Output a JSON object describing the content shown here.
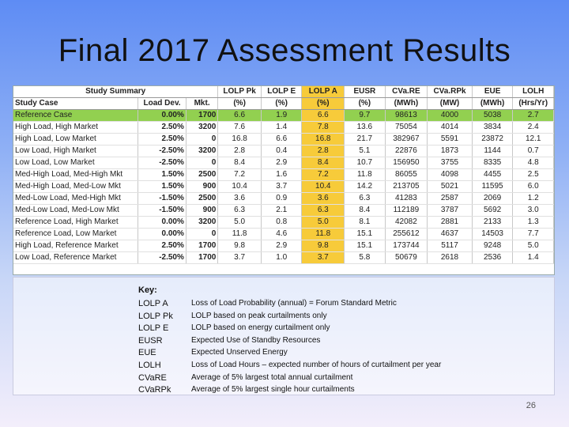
{
  "slide": {
    "title": "Final 2017 Assessment Results",
    "page_number": "26"
  },
  "table": {
    "header_top": {
      "study_summary": "Study Summary"
    },
    "columns": {
      "case": "Study Case",
      "dev": "Load Dev.",
      "mkt": "Mkt.",
      "lolp_pk": "LOLP Pk",
      "lolp_e": "LOLP E",
      "lolp_a": "LOLP A",
      "eusr": "EUSR",
      "cvare": "CVa.RE",
      "cvarpk": "CVa.RPk",
      "eue": "EUE",
      "lolh": "LOLH"
    },
    "units": {
      "lolp_pk": "(%)",
      "lolp_e": "(%)",
      "lolp_a": "(%)",
      "eusr": "(%)",
      "cvare": "(MWh)",
      "cvarpk": "(MW)",
      "eue": "(MWh)",
      "lolh": "(Hrs/Yr)"
    },
    "rows": [
      {
        "case": "Reference Case",
        "dev": "0.00%",
        "mkt": "1700",
        "lolp_pk": "6.6",
        "lolp_e": "1.9",
        "lolp_a": "6.6",
        "eusr": "9.7",
        "cvare": "98613",
        "cvarpk": "4000",
        "eue": "5038",
        "lolh": "2.7"
      },
      {
        "case": "High Load, High Market",
        "dev": "2.50%",
        "mkt": "3200",
        "lolp_pk": "7.6",
        "lolp_e": "1.4",
        "lolp_a": "7.8",
        "eusr": "13.6",
        "cvare": "75054",
        "cvarpk": "4014",
        "eue": "3834",
        "lolh": "2.4"
      },
      {
        "case": "High Load, Low Market",
        "dev": "2.50%",
        "mkt": "0",
        "lolp_pk": "16.8",
        "lolp_e": "6.6",
        "lolp_a": "16.8",
        "eusr": "21.7",
        "cvare": "382967",
        "cvarpk": "5591",
        "eue": "23872",
        "lolh": "12.1"
      },
      {
        "case": "Low Load, High Market",
        "dev": "-2.50%",
        "mkt": "3200",
        "lolp_pk": "2.8",
        "lolp_e": "0.4",
        "lolp_a": "2.8",
        "eusr": "5.1",
        "cvare": "22876",
        "cvarpk": "1873",
        "eue": "1144",
        "lolh": "0.7"
      },
      {
        "case": "Low Load, Low Market",
        "dev": "-2.50%",
        "mkt": "0",
        "lolp_pk": "8.4",
        "lolp_e": "2.9",
        "lolp_a": "8.4",
        "eusr": "10.7",
        "cvare": "156950",
        "cvarpk": "3755",
        "eue": "8335",
        "lolh": "4.8"
      },
      {
        "case": "Med-High Load, Med-High Mkt",
        "dev": "1.50%",
        "mkt": "2500",
        "lolp_pk": "7.2",
        "lolp_e": "1.6",
        "lolp_a": "7.2",
        "eusr": "11.8",
        "cvare": "86055",
        "cvarpk": "4098",
        "eue": "4455",
        "lolh": "2.5"
      },
      {
        "case": "Med-High Load, Med-Low Mkt",
        "dev": "1.50%",
        "mkt": "900",
        "lolp_pk": "10.4",
        "lolp_e": "3.7",
        "lolp_a": "10.4",
        "eusr": "14.2",
        "cvare": "213705",
        "cvarpk": "5021",
        "eue": "11595",
        "lolh": "6.0"
      },
      {
        "case": "Med-Low Load, Med-High Mkt",
        "dev": "-1.50%",
        "mkt": "2500",
        "lolp_pk": "3.6",
        "lolp_e": "0.9",
        "lolp_a": "3.6",
        "eusr": "6.3",
        "cvare": "41283",
        "cvarpk": "2587",
        "eue": "2069",
        "lolh": "1.2"
      },
      {
        "case": "Med-Low Load, Med-Low Mkt",
        "dev": "-1.50%",
        "mkt": "900",
        "lolp_pk": "6.3",
        "lolp_e": "2.1",
        "lolp_a": "6.3",
        "eusr": "8.4",
        "cvare": "112189",
        "cvarpk": "3787",
        "eue": "5692",
        "lolh": "3.0"
      },
      {
        "case": "Reference Load, High Market",
        "dev": "0.00%",
        "mkt": "3200",
        "lolp_pk": "5.0",
        "lolp_e": "0.8",
        "lolp_a": "5.0",
        "eusr": "8.1",
        "cvare": "42082",
        "cvarpk": "2881",
        "eue": "2133",
        "lolh": "1.3"
      },
      {
        "case": "Reference Load, Low Market",
        "dev": "0.00%",
        "mkt": "0",
        "lolp_pk": "11.8",
        "lolp_e": "4.6",
        "lolp_a": "11.8",
        "eusr": "15.1",
        "cvare": "255612",
        "cvarpk": "4637",
        "eue": "14503",
        "lolh": "7.7"
      },
      {
        "case": "High Load, Reference Market",
        "dev": "2.50%",
        "mkt": "1700",
        "lolp_pk": "9.8",
        "lolp_e": "2.9",
        "lolp_a": "9.8",
        "eusr": "15.1",
        "cvare": "173744",
        "cvarpk": "5117",
        "eue": "9248",
        "lolh": "5.0"
      },
      {
        "case": "Low Load, Reference Market",
        "dev": "-2.50%",
        "mkt": "1700",
        "lolp_pk": "3.7",
        "lolp_e": "1.0",
        "lolp_a": "3.7",
        "eusr": "5.8",
        "cvare": "50679",
        "cvarpk": "2618",
        "eue": "2536",
        "lolh": "1.4"
      }
    ]
  },
  "key": {
    "title": "Key:",
    "items": [
      {
        "abbr": "LOLP A",
        "def": "Loss of Load Probability (annual) = Forum Standard Metric"
      },
      {
        "abbr": "LOLP Pk",
        "def": "LOLP based on peak curtailments only"
      },
      {
        "abbr": "LOLP E",
        "def": "LOLP based on energy curtailment only"
      },
      {
        "abbr": "EUSR",
        "def": "Expected Use of Standby Resources"
      },
      {
        "abbr": "EUE",
        "def": "Expected Unserved Energy"
      },
      {
        "abbr": "LOLH",
        "def": "Loss of Load Hours – expected number of hours of curtailment per year"
      },
      {
        "abbr": "CVaRE",
        "def": "Average of 5% largest total annual curtailment"
      },
      {
        "abbr": "CVaRPk",
        "def": "Average of 5% largest single hour curtailments"
      }
    ]
  },
  "colors": {
    "reference_row": "#92d050",
    "lolp_a_column": "#f7cb3a"
  }
}
